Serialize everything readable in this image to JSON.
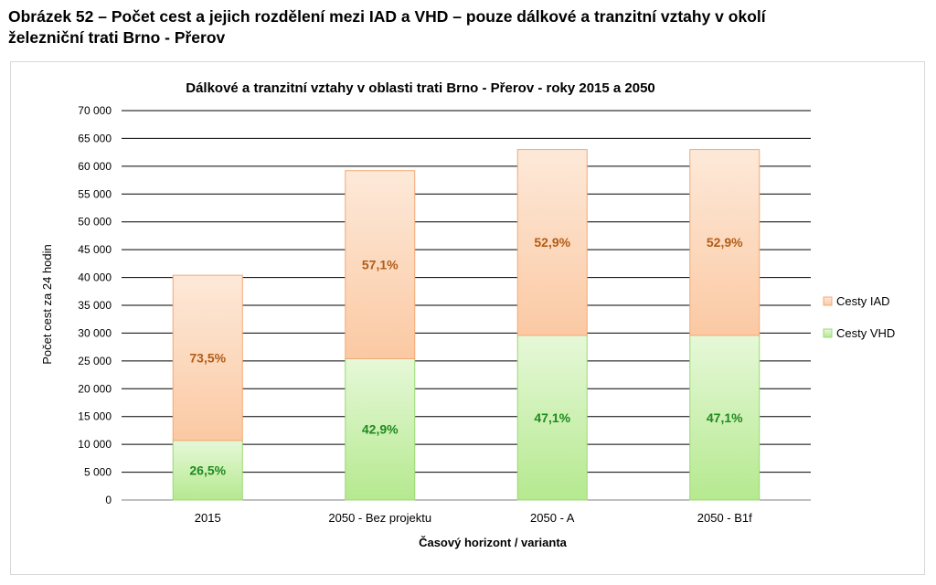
{
  "caption": {
    "line1": "Obrázek 52 – Počet cest a jejich rozdělení mezi IAD a VHD – pouze dálkové a tranzitní vztahy v okolí",
    "line2": "železniční trati Brno - Přerov"
  },
  "colors": {
    "iad_fill_top": "#fde9d9",
    "iad_fill_bottom": "#fbc9a3",
    "iad_stroke": "#f4a875",
    "iad_label": "#b35c16",
    "vhd_fill_top": "#e6f8d8",
    "vhd_fill_bottom": "#b5e98f",
    "vhd_stroke": "#9ad874",
    "vhd_label": "#1f8a1f",
    "grid": "#000000"
  },
  "chart_data": {
    "type": "bar",
    "stacked": true,
    "title": "Dálkové a tranzitní vztahy v oblasti trati Brno - Přerov - roky 2015 a 2050",
    "xlabel": "Časový horizont / varianta",
    "ylabel": "Počet cest za 24 hodin",
    "ylim": [
      0,
      70000
    ],
    "ytick_step": 5000,
    "yticks": [
      "0",
      "5 000",
      "10 000",
      "15 000",
      "20 000",
      "25 000",
      "30 000",
      "35 000",
      "40 000",
      "45 000",
      "50 000",
      "55 000",
      "60 000",
      "65 000",
      "70 000"
    ],
    "categories": [
      "2015",
      "2050 - Bez projektu",
      "2050 - A",
      "2050 - B1f"
    ],
    "series": [
      {
        "name": "Cesty VHD",
        "values": [
          10700,
          25400,
          29600,
          29600
        ],
        "labels": [
          "26,5%",
          "42,9%",
          "47,1%",
          "47,1%"
        ]
      },
      {
        "name": "Cesty IAD",
        "values": [
          29700,
          33800,
          33400,
          33400
        ],
        "labels": [
          "73,5%",
          "57,1%",
          "52,9%",
          "52,9%"
        ]
      }
    ],
    "legend": {
      "position": "right",
      "entries": [
        "Cesty IAD",
        "Cesty VHD"
      ]
    },
    "grid": true
  }
}
